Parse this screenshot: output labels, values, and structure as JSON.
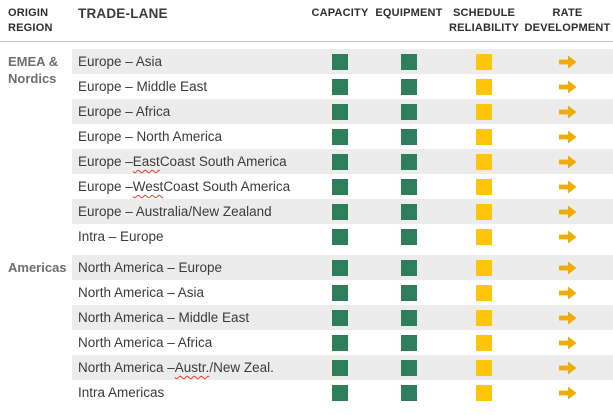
{
  "table": {
    "header": {
      "origin_region": "ORIGIN REGION",
      "trade_lane": "TRADE-LANE",
      "capacity": "CAPACITY",
      "equipment": "EQUIPMENT",
      "schedule_reliability": "SCHEDULE RELIABILITY",
      "rate_development": "RATE DEVELOPMENT"
    },
    "status_colors": {
      "green": "#2E7D5B",
      "yellow": "#FFC40C",
      "arrow_amber": "#F0AC00",
      "misspell_red": "#E53935",
      "band_gray": "#ECECEC"
    },
    "status_legend": {
      "capacity": "green-square",
      "equipment": "green-square",
      "schedule_reliability": "yellow-square",
      "rate_development": "arrow-right"
    },
    "sections": [
      {
        "region": "EMEA & Nordics",
        "rows": [
          {
            "lane_pre": "Europe – Asia",
            "lane_misspelled": "",
            "lane_post": "",
            "capacity": "green-square",
            "equipment": "green-square",
            "schedule_reliability": "yellow-square",
            "rate_development": "arrow-right"
          },
          {
            "lane_pre": "Europe – Middle East",
            "lane_misspelled": "",
            "lane_post": "",
            "capacity": "green-square",
            "equipment": "green-square",
            "schedule_reliability": "yellow-square",
            "rate_development": "arrow-right"
          },
          {
            "lane_pre": "Europe – Africa",
            "lane_misspelled": "",
            "lane_post": "",
            "capacity": "green-square",
            "equipment": "green-square",
            "schedule_reliability": "yellow-square",
            "rate_development": "arrow-right"
          },
          {
            "lane_pre": "Europe – North America",
            "lane_misspelled": "",
            "lane_post": "",
            "capacity": "green-square",
            "equipment": "green-square",
            "schedule_reliability": "yellow-square",
            "rate_development": "arrow-right"
          },
          {
            "lane_pre": "Europe – ",
            "lane_misspelled": "East",
            "lane_post": " Coast South America",
            "capacity": "green-square",
            "equipment": "green-square",
            "schedule_reliability": "yellow-square",
            "rate_development": "arrow-right"
          },
          {
            "lane_pre": "Europe – ",
            "lane_misspelled": "West",
            "lane_post": " Coast South America",
            "capacity": "green-square",
            "equipment": "green-square",
            "schedule_reliability": "yellow-square",
            "rate_development": "arrow-right"
          },
          {
            "lane_pre": "Europe – Australia/New Zealand",
            "lane_misspelled": "",
            "lane_post": "",
            "capacity": "green-square",
            "equipment": "green-square",
            "schedule_reliability": "yellow-square",
            "rate_development": "arrow-right"
          },
          {
            "lane_pre": "Intra – Europe",
            "lane_misspelled": "",
            "lane_post": "",
            "capacity": "green-square",
            "equipment": "green-square",
            "schedule_reliability": "yellow-square",
            "rate_development": "arrow-right"
          }
        ]
      },
      {
        "region": "Americas",
        "rows": [
          {
            "lane_pre": "North America – Europe",
            "lane_misspelled": "",
            "lane_post": "",
            "capacity": "green-square",
            "equipment": "green-square",
            "schedule_reliability": "yellow-square",
            "rate_development": "arrow-right"
          },
          {
            "lane_pre": "North America – Asia",
            "lane_misspelled": "",
            "lane_post": "",
            "capacity": "green-square",
            "equipment": "green-square",
            "schedule_reliability": "yellow-square",
            "rate_development": "arrow-right"
          },
          {
            "lane_pre": "North America – Middle East",
            "lane_misspelled": "",
            "lane_post": "",
            "capacity": "green-square",
            "equipment": "green-square",
            "schedule_reliability": "yellow-square",
            "rate_development": "arrow-right"
          },
          {
            "lane_pre": "North America – Africa",
            "lane_misspelled": "",
            "lane_post": "",
            "capacity": "green-square",
            "equipment": "green-square",
            "schedule_reliability": "yellow-square",
            "rate_development": "arrow-right"
          },
          {
            "lane_pre": "North America – ",
            "lane_misspelled": "Austr.",
            "lane_post": "/New Zeal.",
            "capacity": "green-square",
            "equipment": "green-square",
            "schedule_reliability": "yellow-square",
            "rate_development": "arrow-right"
          },
          {
            "lane_pre": "Intra Americas",
            "lane_misspelled": "",
            "lane_post": "",
            "capacity": "green-square",
            "equipment": "green-square",
            "schedule_reliability": "yellow-square",
            "rate_development": "arrow-right"
          }
        ]
      }
    ]
  }
}
